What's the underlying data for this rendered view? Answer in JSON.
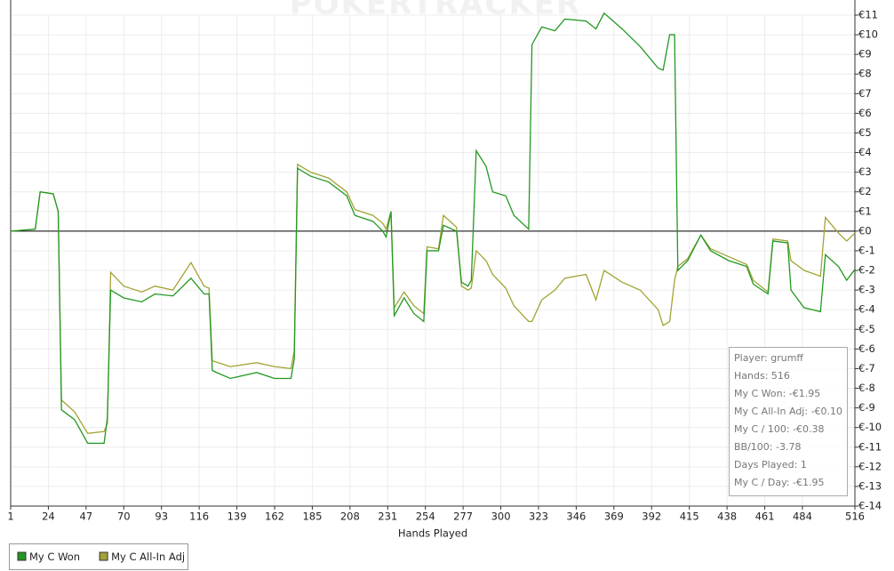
{
  "chart_data": {
    "type": "line",
    "watermark": "POKERTRACKER",
    "x_label": "Hands Played",
    "x": [
      1,
      16,
      19,
      27,
      30,
      32,
      40,
      48,
      58,
      60,
      62,
      70,
      81,
      89,
      100,
      111,
      119,
      122,
      124,
      135,
      151,
      162,
      172,
      174,
      176,
      184,
      195,
      206,
      211,
      222,
      228,
      230,
      233,
      235,
      241,
      247,
      253,
      255,
      262,
      265,
      273,
      276,
      280,
      282,
      285,
      291,
      295,
      303,
      308,
      317,
      319,
      325,
      333,
      339,
      352,
      358,
      363,
      374,
      385,
      396,
      399,
      403,
      406,
      408,
      414,
      422,
      428,
      439,
      450,
      454,
      463,
      466,
      475,
      477,
      485,
      495,
      498,
      506,
      511,
      516
    ],
    "series": [
      {
        "name": "My C Won",
        "color": "#229922",
        "values": [
          0,
          0.1,
          2,
          1.9,
          1,
          -9.1,
          -9.6,
          -10.8,
          -10.8,
          -9.5,
          -3,
          -3.4,
          -3.6,
          -3.2,
          -3.3,
          -2.4,
          -3.2,
          -3.2,
          -7.1,
          -7.5,
          -7.2,
          -7.5,
          -7.5,
          -6.5,
          3.2,
          2.8,
          2.5,
          1.8,
          0.8,
          0.5,
          0,
          -0.3,
          1,
          -4.3,
          -3.4,
          -4.2,
          -4.6,
          -1,
          -1,
          0.3,
          0,
          -2.6,
          -2.8,
          -2.5,
          4.1,
          3.3,
          2,
          1.8,
          0.8,
          0.1,
          9.5,
          10.4,
          10.2,
          10.8,
          10.7,
          10.3,
          11.1,
          10.3,
          9.4,
          8.3,
          8.2,
          10,
          10,
          -2,
          -1.5,
          -0.2,
          -1,
          -1.5,
          -1.8,
          -2.7,
          -3.2,
          -0.5,
          -0.6,
          -3,
          -3.9,
          -4.1,
          -1.2,
          -1.8,
          -2.5,
          -1.95
        ]
      },
      {
        "name": "My C All-In Adj",
        "color": "#a3a335",
        "values": [
          0,
          0.1,
          2,
          1.9,
          1,
          -8.6,
          -9.2,
          -10.3,
          -10.2,
          -9.8,
          -2.1,
          -2.8,
          -3.1,
          -2.8,
          -3.0,
          -1.6,
          -2.8,
          -2.9,
          -6.6,
          -6.9,
          -6.7,
          -6.9,
          -7.0,
          -6.1,
          3.4,
          3.0,
          2.7,
          2.0,
          1.1,
          0.8,
          0.4,
          0.1,
          1.0,
          -3.9,
          -3.1,
          -3.8,
          -4.2,
          -0.8,
          -0.9,
          0.8,
          0.2,
          -2.8,
          -3.0,
          -2.9,
          -1.0,
          -1.5,
          -2.2,
          -2.9,
          -3.8,
          -4.6,
          -4.6,
          -3.5,
          -3.0,
          -2.4,
          -2.2,
          -3.5,
          -2.0,
          -2.6,
          -3.0,
          -4.0,
          -4.8,
          -4.6,
          -2.5,
          -1.8,
          -1.4,
          -0.2,
          -0.9,
          -1.3,
          -1.7,
          -2.5,
          -3.1,
          -0.4,
          -0.5,
          -1.5,
          -2.0,
          -2.3,
          0.7,
          -0.1,
          -0.5,
          -0.1
        ]
      }
    ],
    "xlim": [
      1,
      516
    ],
    "xticks": [
      1,
      24,
      47,
      70,
      93,
      116,
      139,
      162,
      185,
      208,
      231,
      254,
      277,
      300,
      323,
      346,
      369,
      392,
      415,
      438,
      461,
      484,
      516
    ],
    "ylim": [
      -14,
      11
    ],
    "yticks": [
      {
        "value": 11,
        "label": "€11"
      },
      {
        "value": 10,
        "label": "€10"
      },
      {
        "value": 9,
        "label": "€9"
      },
      {
        "value": 8,
        "label": "€8"
      },
      {
        "value": 7,
        "label": "€7"
      },
      {
        "value": 6,
        "label": "€6"
      },
      {
        "value": 5,
        "label": "€5"
      },
      {
        "value": 4,
        "label": "€4"
      },
      {
        "value": 3,
        "label": "€3"
      },
      {
        "value": 2,
        "label": "€2"
      },
      {
        "value": 1,
        "label": "€1"
      },
      {
        "value": 0,
        "label": "€0"
      },
      {
        "value": -1,
        "label": "€-1"
      },
      {
        "value": -2,
        "label": "€-2"
      },
      {
        "value": -3,
        "label": "€-3"
      },
      {
        "value": -4,
        "label": "€-4"
      },
      {
        "value": -5,
        "label": "€-5"
      },
      {
        "value": -6,
        "label": "€-6"
      },
      {
        "value": -7,
        "label": "€-7"
      },
      {
        "value": -8,
        "label": "€-8"
      },
      {
        "value": -9,
        "label": "€-9"
      },
      {
        "value": -10,
        "label": "€-10"
      },
      {
        "value": -11,
        "label": "€-11"
      },
      {
        "value": -12,
        "label": "€-12"
      },
      {
        "value": -13,
        "label": "€-13"
      },
      {
        "value": -14,
        "label": "€-14"
      }
    ],
    "grid": true,
    "info_box": [
      "Player: grumff",
      "Hands: 516",
      "My C Won: -€1.95",
      "My C All-In Adj: -€0.10",
      "My C / 100: -€0.38",
      "BB/100: -3.78",
      "Days Played: 1",
      "My C / Day: -€1.95"
    ]
  }
}
